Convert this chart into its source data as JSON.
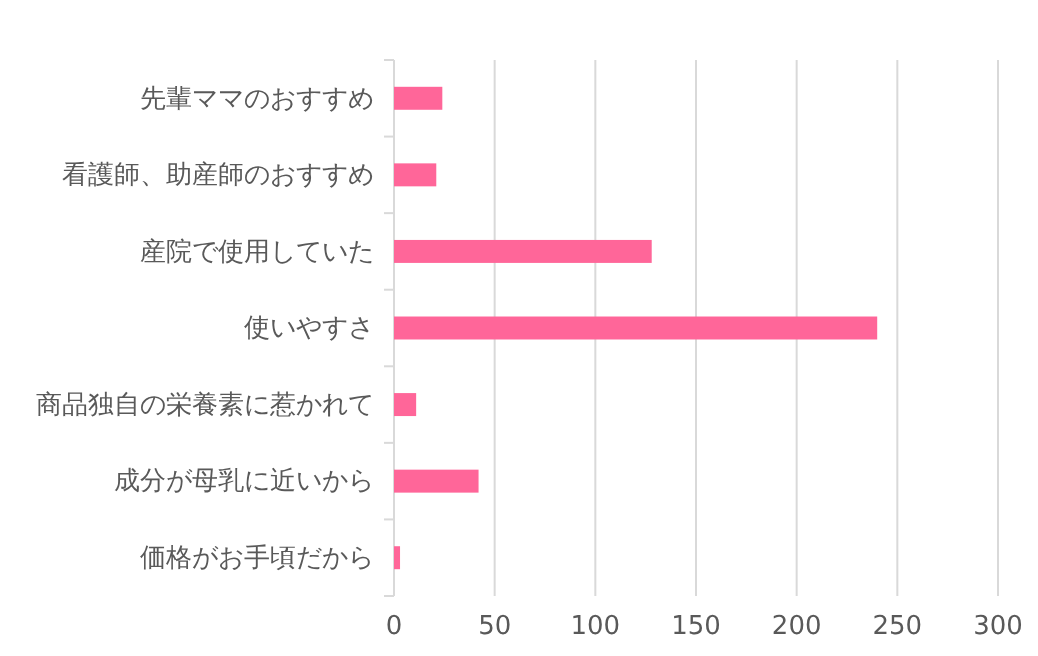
{
  "chart_data": {
    "type": "bar",
    "orientation": "horizontal",
    "categories": [
      "先輩ママのおすすめ",
      "看護師、助産師のおすすめ",
      "産院で使用していた",
      "使いやすさ",
      "商品独自の栄養素に惹かれて",
      "成分が母乳に近いから",
      "価格がお手頃だから"
    ],
    "values": [
      24,
      21,
      128,
      240,
      11,
      42,
      3
    ],
    "color": "#ff6699",
    "xlim": [
      0,
      300
    ],
    "xticks": [
      0,
      50,
      100,
      150,
      200,
      250,
      300
    ],
    "grid": "x"
  }
}
